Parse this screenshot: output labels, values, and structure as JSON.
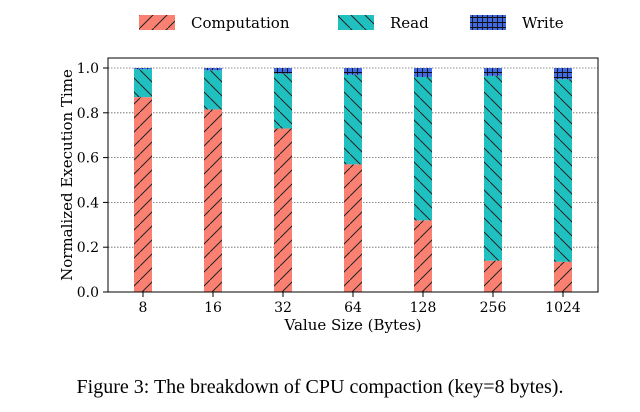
{
  "chart_data": {
    "type": "bar",
    "stacked": true,
    "categories": [
      "8",
      "16",
      "32",
      "64",
      "128",
      "256",
      "1024"
    ],
    "series": [
      {
        "name": "Computation",
        "color": "#fa8072",
        "pattern": "diagonal-slash",
        "values": [
          0.87,
          0.815,
          0.73,
          0.57,
          0.32,
          0.14,
          0.135
        ]
      },
      {
        "name": "Read",
        "color": "#20c0c0",
        "pattern": "diagonal-backslash",
        "values": [
          0.125,
          0.175,
          0.245,
          0.4,
          0.64,
          0.825,
          0.815
        ]
      },
      {
        "name": "Write",
        "color": "#4169e1",
        "pattern": "crosshatch",
        "values": [
          0.005,
          0.01,
          0.025,
          0.03,
          0.04,
          0.035,
          0.05
        ]
      }
    ],
    "xlabel": "Value Size (Bytes)",
    "ylabel": "Normalized Execution Time",
    "ylim": [
      0,
      1.0
    ],
    "yticks": [
      "0.0",
      "0.2",
      "0.4",
      "0.6",
      "0.8",
      "1.0"
    ],
    "grid": "horizontal-dotted",
    "legend": "top"
  },
  "caption": "Figure 3: The breakdown of CPU compaction (key=8 bytes)."
}
